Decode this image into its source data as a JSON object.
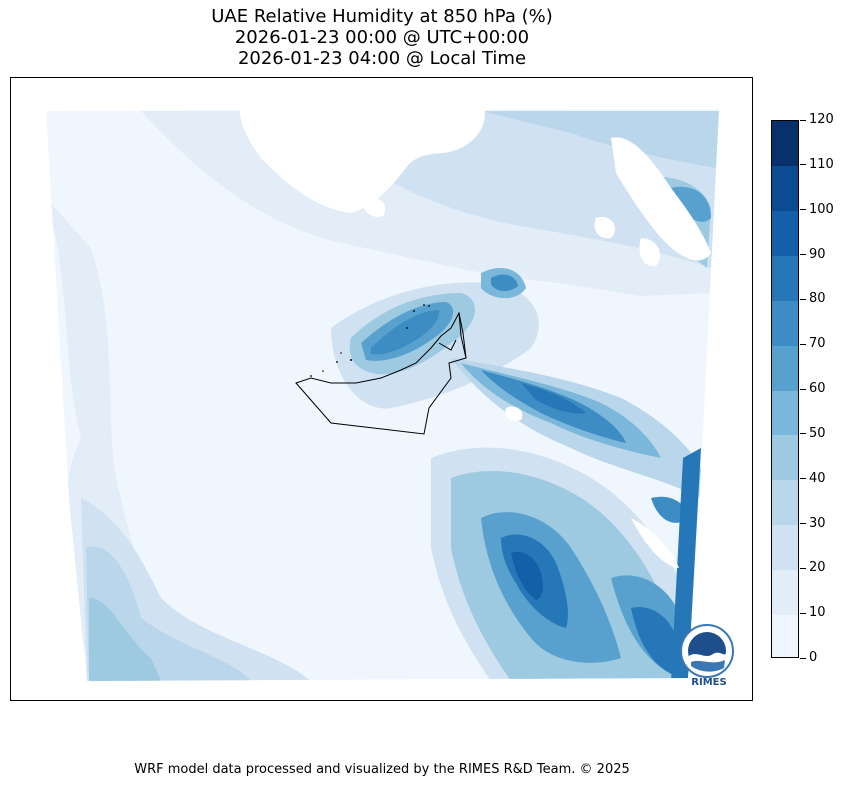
{
  "title": {
    "line1": "UAE Relative Humidity at 850 hPa (%)",
    "line2": "2026-01-23 00:00 @ UTC+00:00",
    "line3": "2026-01-23 04:00 @ Local Time"
  },
  "colorbar": {
    "levels": [
      0,
      10,
      20,
      30,
      40,
      50,
      60,
      70,
      80,
      90,
      100,
      110,
      120
    ],
    "labels": [
      "0",
      "10",
      "20",
      "30",
      "40",
      "50",
      "60",
      "70",
      "80",
      "90",
      "100",
      "110",
      "120"
    ],
    "colors": [
      "#f0f6fd",
      "#e2edf8",
      "#d0e1f2",
      "#bad6eb",
      "#9dcae1",
      "#7ab7da",
      "#58a1cf",
      "#3d8dc4",
      "#2677b8",
      "#1460a8",
      "#0a4b91",
      "#08306b"
    ]
  },
  "logo": {
    "text": "RIMES"
  },
  "footer": {
    "credit": "WRF model data processed and visualized by the RIMES R&D Team. © 2025"
  }
}
